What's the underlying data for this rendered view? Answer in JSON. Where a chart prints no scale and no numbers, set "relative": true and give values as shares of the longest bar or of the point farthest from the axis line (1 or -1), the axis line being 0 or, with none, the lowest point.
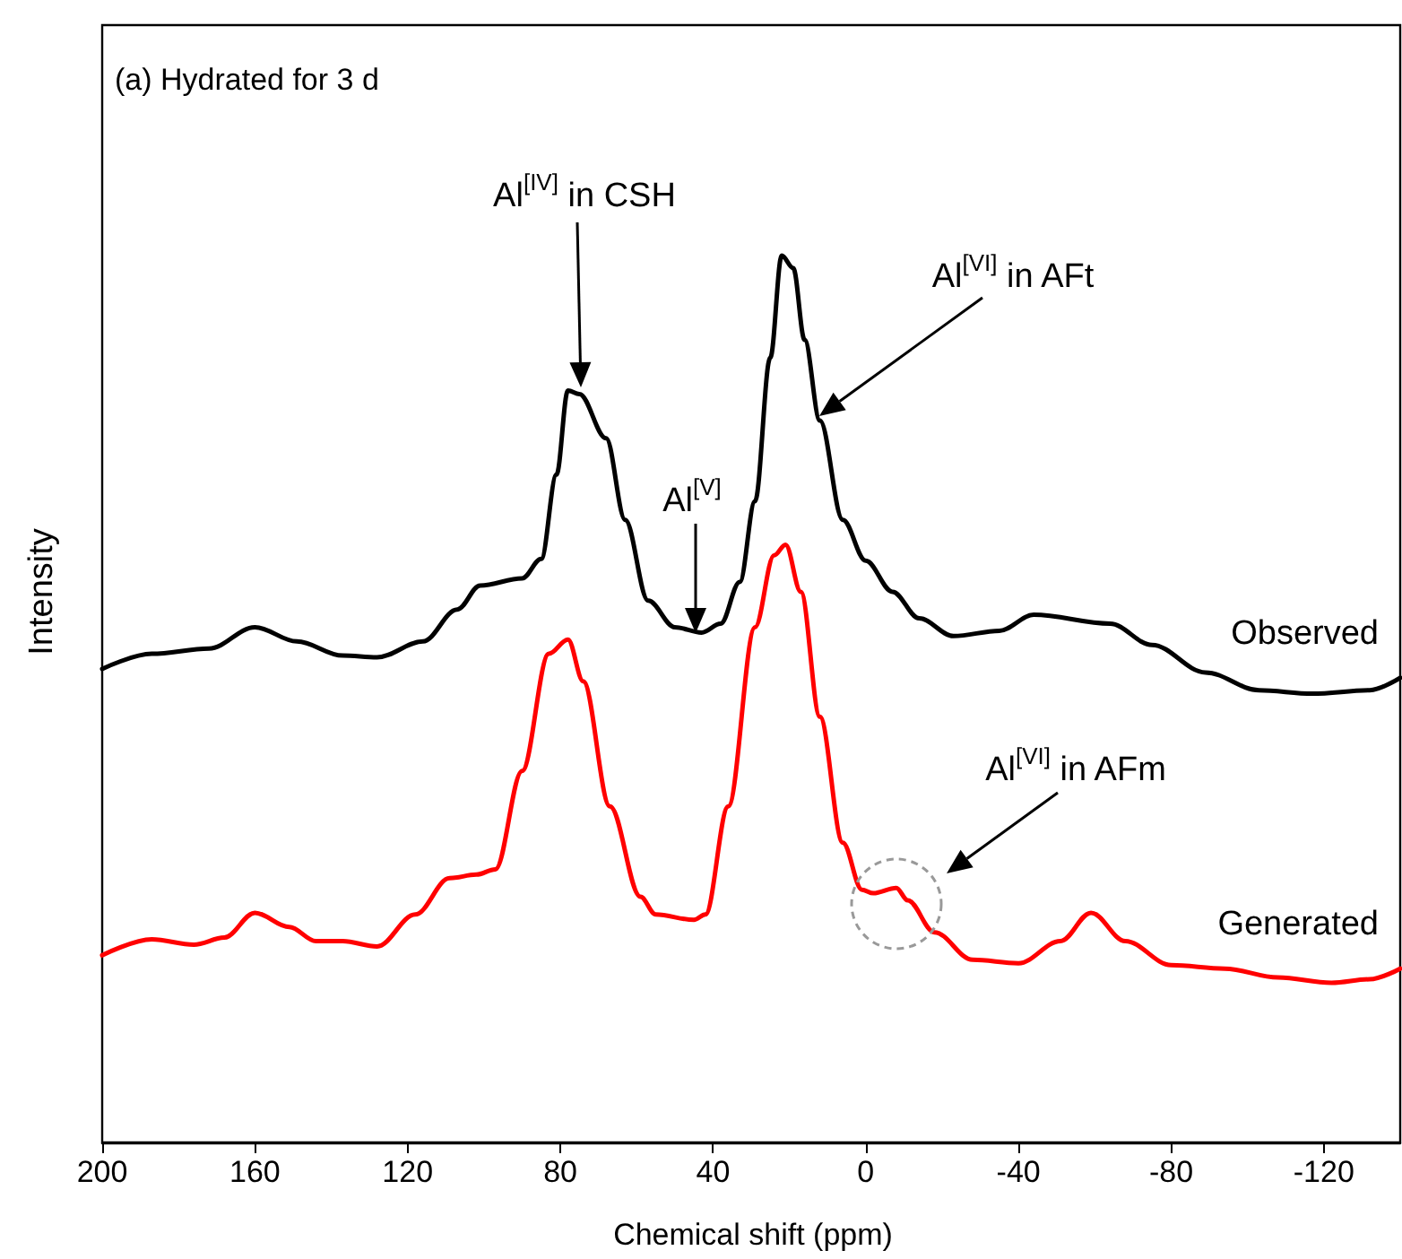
{
  "chart_data": {
    "type": "line",
    "title": "(a) Hydrated for 3 d",
    "xlabel": "Chemical shift (ppm)",
    "ylabel": "Intensity",
    "relative": true,
    "tick_labels": "x",
    "xlim": [
      200,
      -140
    ],
    "xticks": [
      200,
      160,
      120,
      80,
      40,
      0,
      -40,
      -80,
      -120
    ],
    "annotations": [
      "Al$^{[IV]}$ in CSH",
      "Al$^{[V]}$",
      "Al$^{[VI]}$ in AFt",
      "Al$^{[VI]}$ in AFm"
    ],
    "series": [
      {
        "name": "Observed",
        "color": "#000000",
        "x": [
          200,
          187,
          172,
          160,
          149,
          137,
          128,
          116,
          107,
          101,
          90,
          85,
          81,
          78,
          75,
          68,
          63,
          57,
          50,
          43,
          38,
          33,
          29,
          25,
          22,
          19,
          16,
          12,
          6,
          0,
          -7,
          -14,
          -23,
          -35,
          -44,
          -64,
          -75,
          -89,
          -103,
          -117,
          -132,
          -140
        ],
        "values": [
          0.534,
          0.551,
          0.557,
          0.581,
          0.565,
          0.549,
          0.547,
          0.565,
          0.601,
          0.628,
          0.636,
          0.658,
          0.753,
          0.848,
          0.844,
          0.794,
          0.702,
          0.611,
          0.581,
          0.575,
          0.585,
          0.632,
          0.723,
          0.885,
          1.0,
          0.986,
          0.905,
          0.814,
          0.702,
          0.656,
          0.621,
          0.591,
          0.571,
          0.577,
          0.595,
          0.585,
          0.561,
          0.53,
          0.51,
          0.506,
          0.51,
          0.524
        ]
      },
      {
        "name": "Generated",
        "color": "#ff0000",
        "x": [
          200,
          187,
          176,
          168,
          160,
          151,
          144,
          137,
          128,
          118,
          109,
          102,
          97,
          90,
          83,
          78,
          74,
          67,
          59,
          55,
          45,
          42,
          36,
          29,
          24,
          21,
          17,
          12,
          6,
          1,
          -2,
          -8,
          -11,
          -18,
          -28,
          -40,
          -51,
          -59,
          -68,
          -80,
          -94,
          -108,
          -122,
          -132,
          -140
        ],
        "values": [
          0.211,
          0.229,
          0.223,
          0.231,
          0.259,
          0.243,
          0.227,
          0.227,
          0.221,
          0.257,
          0.298,
          0.302,
          0.308,
          0.419,
          0.551,
          0.567,
          0.52,
          0.379,
          0.277,
          0.257,
          0.251,
          0.257,
          0.379,
          0.581,
          0.662,
          0.674,
          0.621,
          0.48,
          0.338,
          0.285,
          0.281,
          0.287,
          0.273,
          0.237,
          0.206,
          0.202,
          0.227,
          0.259,
          0.227,
          0.2,
          0.196,
          0.186,
          0.18,
          0.184,
          0.196
        ]
      }
    ]
  }
}
